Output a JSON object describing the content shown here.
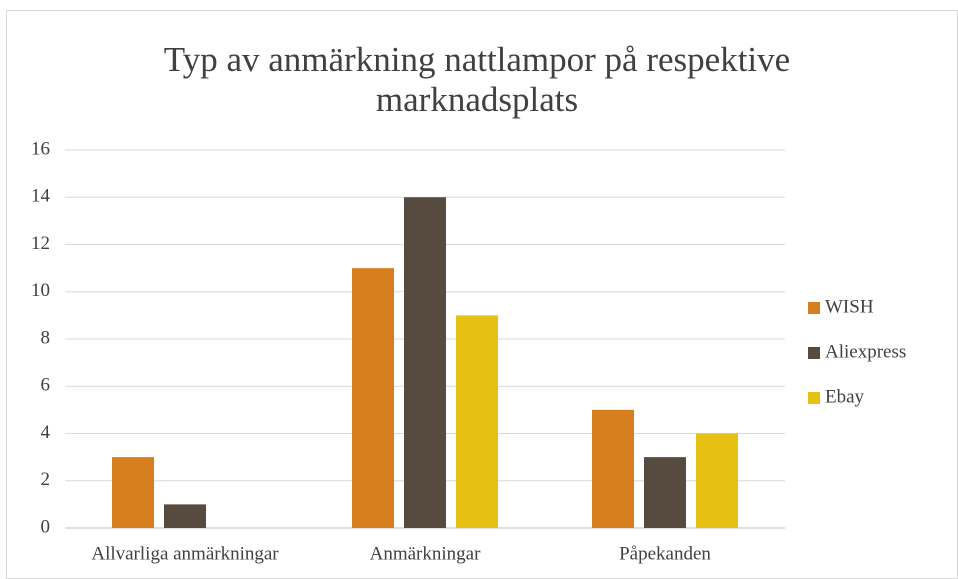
{
  "chart_data": {
    "type": "bar",
    "title": "Typ av anmärkning nattlampor på respektive marknadsplats",
    "categories": [
      "Allvarliga anmärkningar",
      "Anmärkningar",
      "Påpekanden"
    ],
    "series": [
      {
        "name": "WISH",
        "color": "#d77f1e",
        "values": [
          3,
          11,
          5
        ]
      },
      {
        "name": "Aliexpress",
        "color": "#574b3f",
        "values": [
          1,
          14,
          3
        ]
      },
      {
        "name": "Ebay",
        "color": "#e6c012",
        "values": [
          0,
          9,
          4
        ]
      }
    ],
    "ylim": [
      0,
      16
    ],
    "yticks": [
      0,
      2,
      4,
      6,
      8,
      10,
      12,
      14,
      16
    ],
    "grid": true,
    "legend": "right"
  }
}
